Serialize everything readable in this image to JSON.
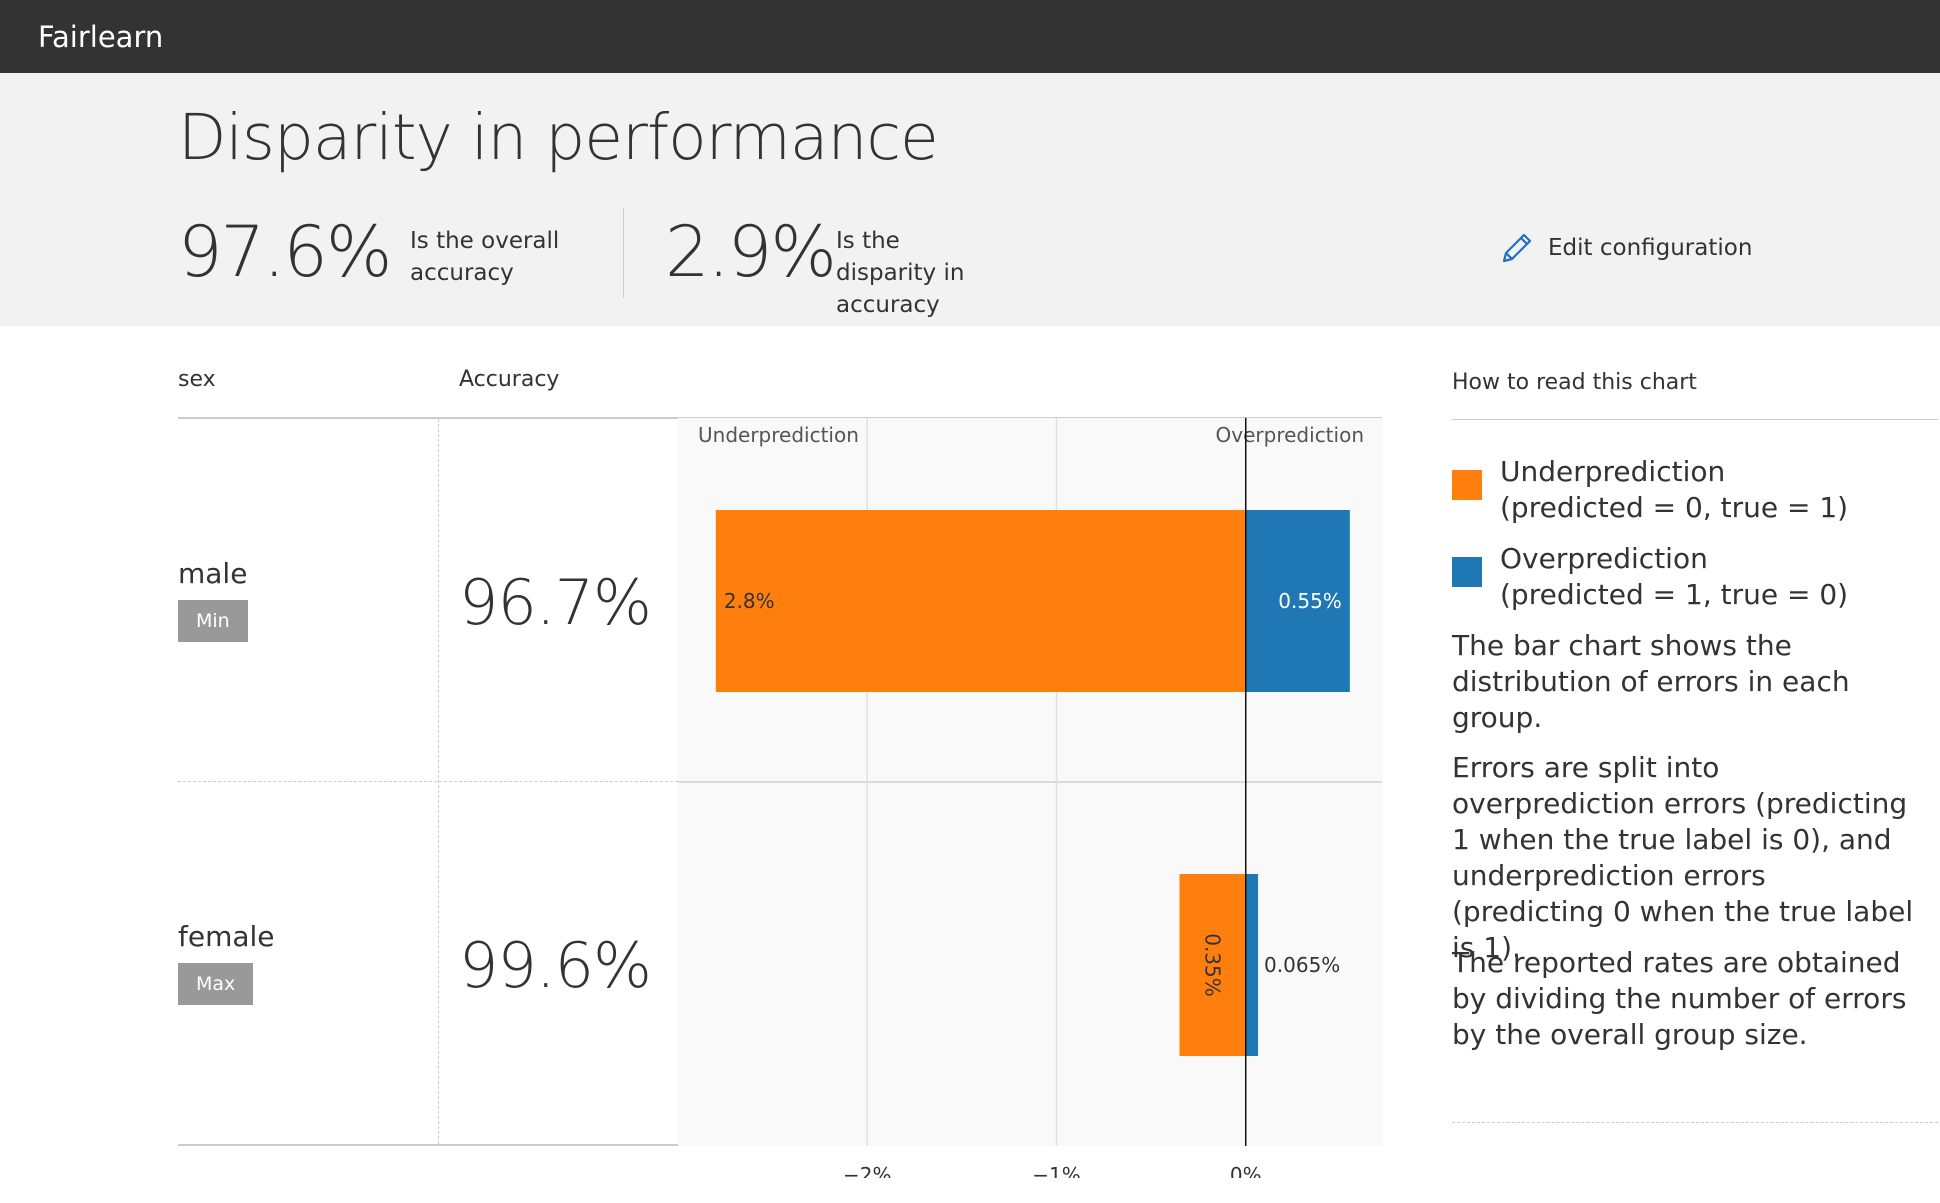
{
  "app": {
    "brand": "Fairlearn"
  },
  "summary": {
    "title": "Disparity in performance",
    "overall_value": "97.6%",
    "overall_label": "Is the overall accuracy",
    "disparity_value": "2.9%",
    "disparity_label": "Is the disparity in accuracy",
    "edit_label": "Edit configuration"
  },
  "table": {
    "group_header": "sex",
    "metric_header": "Accuracy",
    "rows": [
      {
        "group": "male",
        "badge": "Min",
        "accuracy": "96.7%"
      },
      {
        "group": "female",
        "badge": "Max",
        "accuracy": "99.6%"
      }
    ]
  },
  "chart_data": {
    "type": "bar",
    "orientation": "horizontal",
    "stacked": true,
    "categories": [
      "male",
      "female"
    ],
    "series": [
      {
        "name": "Underprediction",
        "color": "#ff7f0e",
        "values": [
          -2.8,
          -0.35
        ],
        "labels": [
          "2.8%",
          "0.35%"
        ]
      },
      {
        "name": "Overprediction",
        "color": "#1f77b4",
        "values": [
          0.55,
          0.065
        ],
        "labels": [
          "0.55%",
          "0.065%"
        ]
      }
    ],
    "xlim": [
      -3,
      0.72
    ],
    "xticks": [
      {
        "value": -2,
        "label": "−2%"
      },
      {
        "value": -1,
        "label": "−1%"
      },
      {
        "value": 0,
        "label": "0%"
      }
    ],
    "annotations": {
      "left": "Underprediction",
      "right": "Overprediction"
    },
    "grid": true
  },
  "legend": {
    "header": "How to read this chart",
    "items": [
      {
        "name": "Underprediction",
        "detail": "(predicted = 0, true = 1)",
        "color": "#ff7f0e"
      },
      {
        "name": "Overprediction",
        "detail": "(predicted = 1, true = 0)",
        "color": "#1f77b4"
      }
    ],
    "paragraphs": [
      "The bar chart shows the distribution of errors in each group.",
      "Errors are split into overprediction errors (predicting 1 when the true label is 0), and underprediction errors (predicting 0 when the true label is 1).",
      "The reported rates are obtained by dividing the number of errors by the overall group size."
    ]
  }
}
